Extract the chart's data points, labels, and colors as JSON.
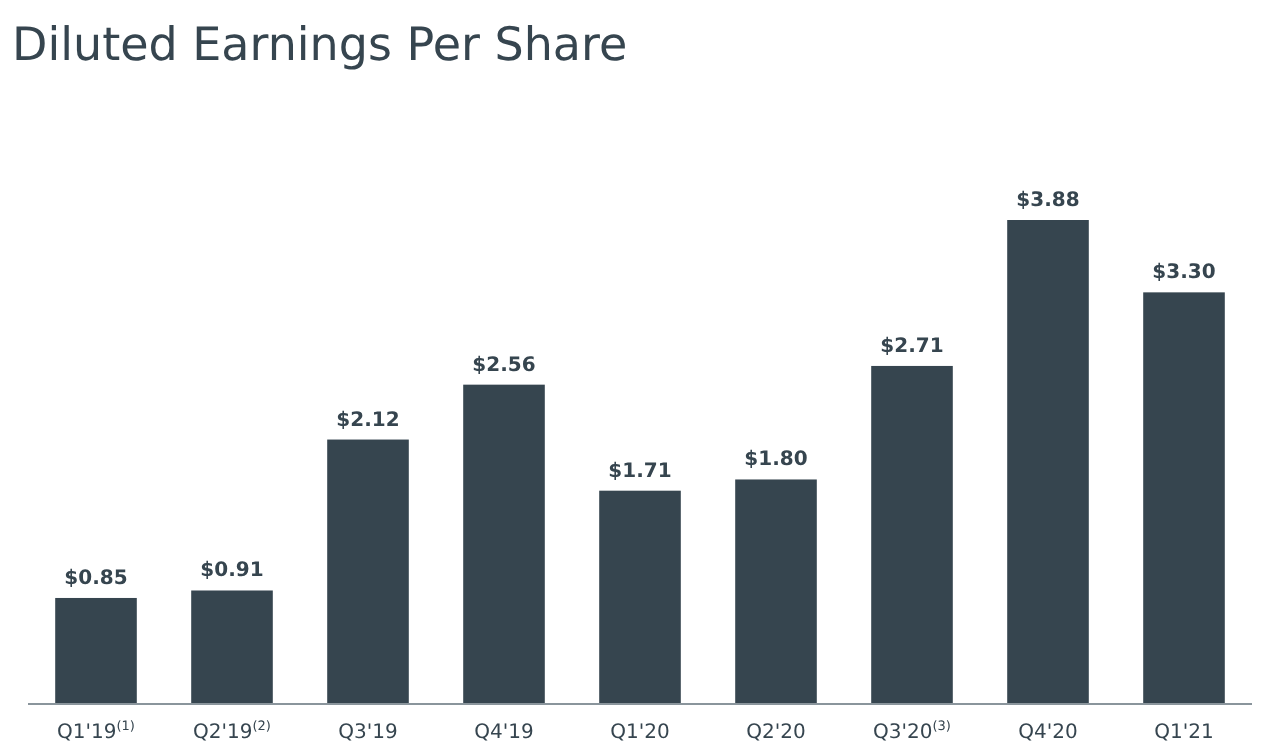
{
  "chart_data": {
    "type": "bar",
    "title": "Diluted Earnings Per Share",
    "categories": [
      "Q1'19$^{(1)}$",
      "Q2'19$^{(2)}$",
      "Q3'19",
      "Q4'19",
      "Q1'20",
      "Q2'20",
      "Q3'20$^{(3)}$",
      "Q4'20",
      "Q1'21"
    ],
    "values": [
      0.85,
      0.91,
      2.12,
      2.56,
      1.71,
      1.8,
      2.71,
      3.88,
      3.3
    ],
    "value_labels": [
      "$0.85",
      "$0.91",
      "$2.12",
      "$2.56",
      "$1.71",
      "$1.80",
      "$2.71",
      "$3.88",
      "$3.30"
    ],
    "color": "#36454f"
  }
}
